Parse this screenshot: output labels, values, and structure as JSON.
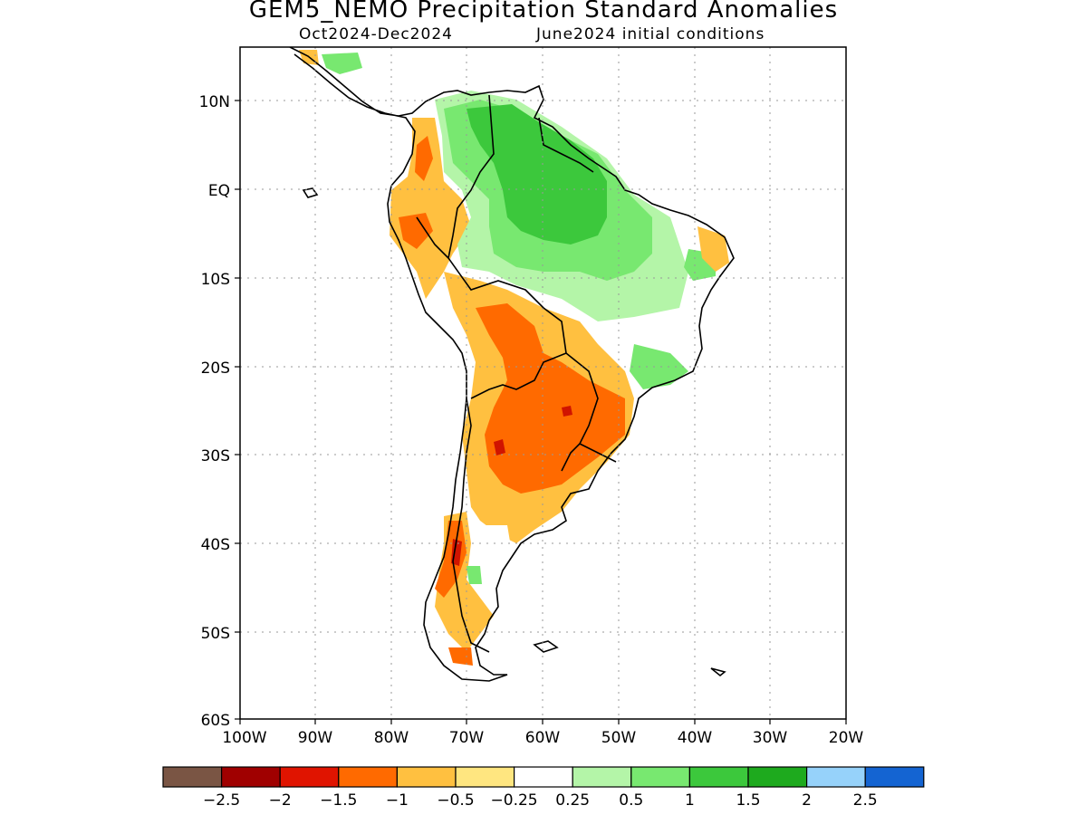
{
  "title": "GEM5_NEMO Precipitation Standard Anomalies",
  "subtitle_left": "Oct2024-Dec2024",
  "subtitle_right": "June2024 initial conditions",
  "map": {
    "lon_range": [
      -100,
      -20
    ],
    "lat_range": [
      -60,
      16
    ],
    "x_ticks": [
      "100W",
      "90W",
      "80W",
      "70W",
      "60W",
      "50W",
      "40W",
      "30W",
      "20W"
    ],
    "y_ticks": [
      "10N",
      "EQ",
      "10S",
      "20S",
      "30S",
      "40S",
      "50S",
      "60S"
    ],
    "gridlines": "dotted",
    "region": "South America"
  },
  "colorbar": {
    "colors": [
      "#7a5544",
      "#a00000",
      "#e01400",
      "#ff6a00",
      "#ffc040",
      "#ffe680",
      "#ffffff",
      "#b4f5a8",
      "#78e870",
      "#3cc83c",
      "#1eaa1e",
      "#96d2fa",
      "#1464d2"
    ],
    "labels": [
      "-2.5",
      "-2",
      "-1.5",
      "-1",
      "-0.5",
      "-0.25",
      "0.25",
      "0.5",
      "1",
      "1.5",
      "2",
      "2.5"
    ]
  }
}
